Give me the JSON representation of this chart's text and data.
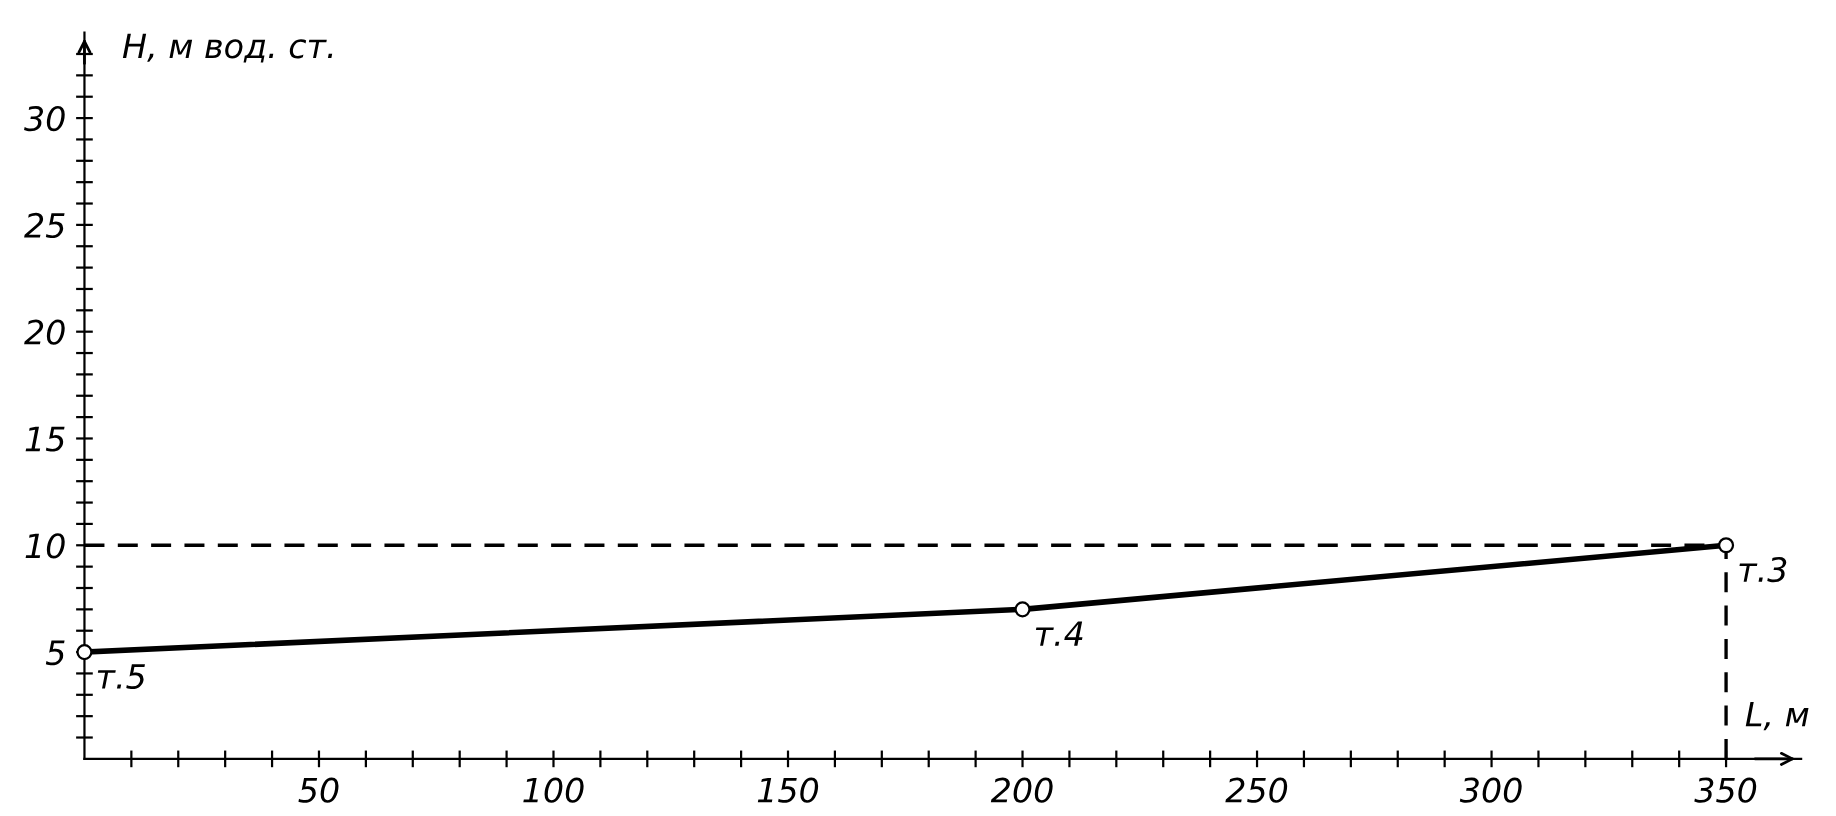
{
  "chart_data": {
    "type": "line",
    "xlabel": "L, м",
    "ylabel": "H, м вод. ст.",
    "x": [
      0,
      200,
      350
    ],
    "series": [
      {
        "color": "#000000",
        "values": [
          5,
          7,
          10
        ]
      }
    ],
    "marker": "circle",
    "line_style": "solid",
    "grid": false,
    "xlim": [
      0,
      366
    ],
    "ylim": [
      0,
      34
    ],
    "xticks": [
      {
        "value": 10,
        "label": null
      },
      {
        "value": 20,
        "label": null
      },
      {
        "value": 30,
        "label": null
      },
      {
        "value": 40,
        "label": null
      },
      50,
      {
        "value": 60,
        "label": null
      },
      {
        "value": 70,
        "label": null
      },
      {
        "value": 80,
        "label": null
      },
      {
        "value": 90,
        "label": null
      },
      100,
      {
        "value": 110,
        "label": null
      },
      {
        "value": 120,
        "label": null
      },
      {
        "value": 130,
        "label": null
      },
      {
        "value": 140,
        "label": null
      },
      150,
      {
        "value": 160,
        "label": null
      },
      {
        "value": 170,
        "label": null
      },
      {
        "value": 180,
        "label": null
      },
      {
        "value": 190,
        "label": null
      },
      200,
      {
        "value": 210,
        "label": null
      },
      {
        "value": 220,
        "label": null
      },
      {
        "value": 230,
        "label": null
      },
      {
        "value": 240,
        "label": null
      },
      250,
      {
        "value": 260,
        "label": null
      },
      {
        "value": 270,
        "label": null
      },
      {
        "value": 280,
        "label": null
      },
      {
        "value": 290,
        "label": null
      },
      300,
      {
        "value": 310,
        "label": null
      },
      {
        "value": 320,
        "label": null
      },
      {
        "value": 330,
        "label": null
      },
      {
        "value": 340,
        "label": null
      },
      350
    ],
    "yticks": [
      {
        "value": 1,
        "label": null
      },
      {
        "value": 2,
        "label": null
      },
      {
        "value": 3,
        "label": null
      },
      {
        "value": 4,
        "label": null
      },
      5,
      {
        "value": 6,
        "label": null
      },
      {
        "value": 7,
        "label": null
      },
      {
        "value": 8,
        "label": null
      },
      {
        "value": 9,
        "label": null
      },
      10,
      {
        "value": 11,
        "label": null
      },
      {
        "value": 12,
        "label": null
      },
      {
        "value": 13,
        "label": null
      },
      {
        "value": 14,
        "label": null
      },
      15,
      {
        "value": 16,
        "label": null
      },
      {
        "value": 17,
        "label": null
      },
      {
        "value": 18,
        "label": null
      },
      {
        "value": 19,
        "label": null
      },
      20,
      {
        "value": 21,
        "label": null
      },
      {
        "value": 22,
        "label": null
      },
      {
        "value": 23,
        "label": null
      },
      {
        "value": 24,
        "label": null
      },
      25,
      {
        "value": 26,
        "label": null
      },
      {
        "value": 27,
        "label": null
      },
      {
        "value": 28,
        "label": null
      },
      {
        "value": 29,
        "label": null
      },
      30,
      {
        "value": 31,
        "label": null
      },
      {
        "value": 32,
        "label": null
      },
      {
        "value": 33,
        "label": null
      }
    ],
    "ref_lines": [
      {
        "axis": "y",
        "value": 10,
        "line_style": "dashed",
        "color": "#000000"
      },
      {
        "axis": "x",
        "value": 350,
        "line_style": "dashed",
        "color": "#000000"
      }
    ],
    "annotations": [
      {
        "text": "т.5",
        "x": 0,
        "y": 5
      },
      {
        "text": "т.4",
        "x": 200,
        "y": 7
      },
      {
        "text": "т.3",
        "x": 350,
        "y": 10
      }
    ]
  }
}
